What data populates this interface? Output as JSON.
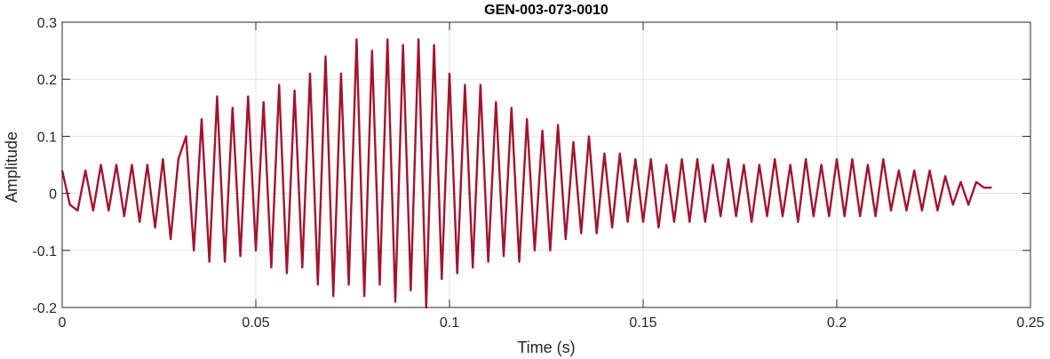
{
  "chart_data": {
    "type": "line",
    "title": "GEN-003-073-0010",
    "xlabel": "Time (s)",
    "ylabel": "Amplitude",
    "xlim": [
      0,
      0.25
    ],
    "ylim": [
      -0.2,
      0.3
    ],
    "xticks": [
      0,
      0.05,
      0.1,
      0.15,
      0.2,
      0.25
    ],
    "xtick_labels": [
      "0",
      "0.05",
      "0.1",
      "0.15",
      "0.2",
      "0.25"
    ],
    "yticks": [
      -0.2,
      -0.1,
      0,
      0.1,
      0.2,
      0.3
    ],
    "ytick_labels": [
      "-0.2",
      "-0.1",
      "0",
      "0.1",
      "0.2",
      "0.3"
    ],
    "grid": true,
    "line_color": "#a2142f",
    "series": [
      {
        "x": [
          0.0,
          0.002,
          0.004,
          0.006,
          0.008,
          0.01,
          0.012,
          0.014,
          0.016,
          0.018,
          0.02,
          0.022,
          0.024,
          0.026,
          0.028,
          0.03,
          0.032,
          0.034,
          0.036,
          0.038,
          0.04,
          0.042,
          0.044,
          0.046,
          0.048,
          0.05,
          0.052,
          0.054,
          0.056,
          0.058,
          0.06,
          0.062,
          0.064,
          0.066,
          0.068,
          0.07,
          0.072,
          0.074,
          0.076,
          0.078,
          0.08,
          0.082,
          0.084,
          0.086,
          0.088,
          0.09,
          0.092,
          0.094,
          0.096,
          0.098,
          0.1,
          0.102,
          0.104,
          0.106,
          0.108,
          0.11,
          0.112,
          0.114,
          0.116,
          0.118,
          0.12,
          0.122,
          0.124,
          0.126,
          0.128,
          0.13,
          0.132,
          0.134,
          0.136,
          0.138,
          0.14,
          0.142,
          0.144,
          0.146,
          0.148,
          0.15,
          0.152,
          0.154,
          0.156,
          0.158,
          0.16,
          0.162,
          0.164,
          0.166,
          0.168,
          0.17,
          0.172,
          0.174,
          0.176,
          0.178,
          0.18,
          0.182,
          0.184,
          0.186,
          0.188,
          0.19,
          0.192,
          0.194,
          0.196,
          0.198,
          0.2,
          0.202,
          0.204,
          0.206,
          0.208,
          0.21,
          0.212,
          0.214,
          0.216,
          0.218,
          0.22,
          0.222,
          0.224,
          0.226,
          0.228,
          0.23,
          0.232,
          0.234,
          0.236,
          0.238,
          0.24
        ],
        "y": [
          0.04,
          -0.02,
          -0.03,
          0.04,
          -0.03,
          0.05,
          -0.03,
          0.05,
          -0.04,
          0.05,
          -0.05,
          0.05,
          -0.06,
          0.06,
          -0.08,
          0.06,
          0.1,
          -0.1,
          0.13,
          -0.12,
          0.17,
          -0.12,
          0.15,
          -0.11,
          0.17,
          -0.1,
          0.16,
          -0.13,
          0.19,
          -0.14,
          0.18,
          -0.13,
          0.21,
          -0.16,
          0.24,
          -0.18,
          0.21,
          -0.16,
          0.27,
          -0.18,
          0.25,
          -0.16,
          0.27,
          -0.19,
          0.26,
          -0.17,
          0.27,
          -0.2,
          0.26,
          -0.15,
          0.21,
          -0.14,
          0.19,
          -0.13,
          0.19,
          -0.12,
          0.16,
          -0.11,
          0.15,
          -0.12,
          0.13,
          -0.1,
          0.11,
          -0.1,
          0.12,
          -0.08,
          0.09,
          -0.07,
          0.1,
          -0.07,
          0.07,
          -0.06,
          0.07,
          -0.05,
          0.06,
          -0.05,
          0.06,
          -0.06,
          0.05,
          -0.05,
          0.06,
          -0.05,
          0.06,
          -0.05,
          0.05,
          -0.04,
          0.06,
          -0.04,
          0.05,
          -0.05,
          0.05,
          -0.04,
          0.06,
          -0.04,
          0.05,
          -0.05,
          0.06,
          -0.04,
          0.05,
          -0.04,
          0.06,
          -0.04,
          0.06,
          -0.04,
          0.05,
          -0.04,
          0.06,
          -0.03,
          0.04,
          -0.03,
          0.04,
          -0.03,
          0.04,
          -0.03,
          0.03,
          -0.02,
          0.02,
          -0.02,
          0.02,
          0.01,
          0.01
        ]
      }
    ]
  }
}
